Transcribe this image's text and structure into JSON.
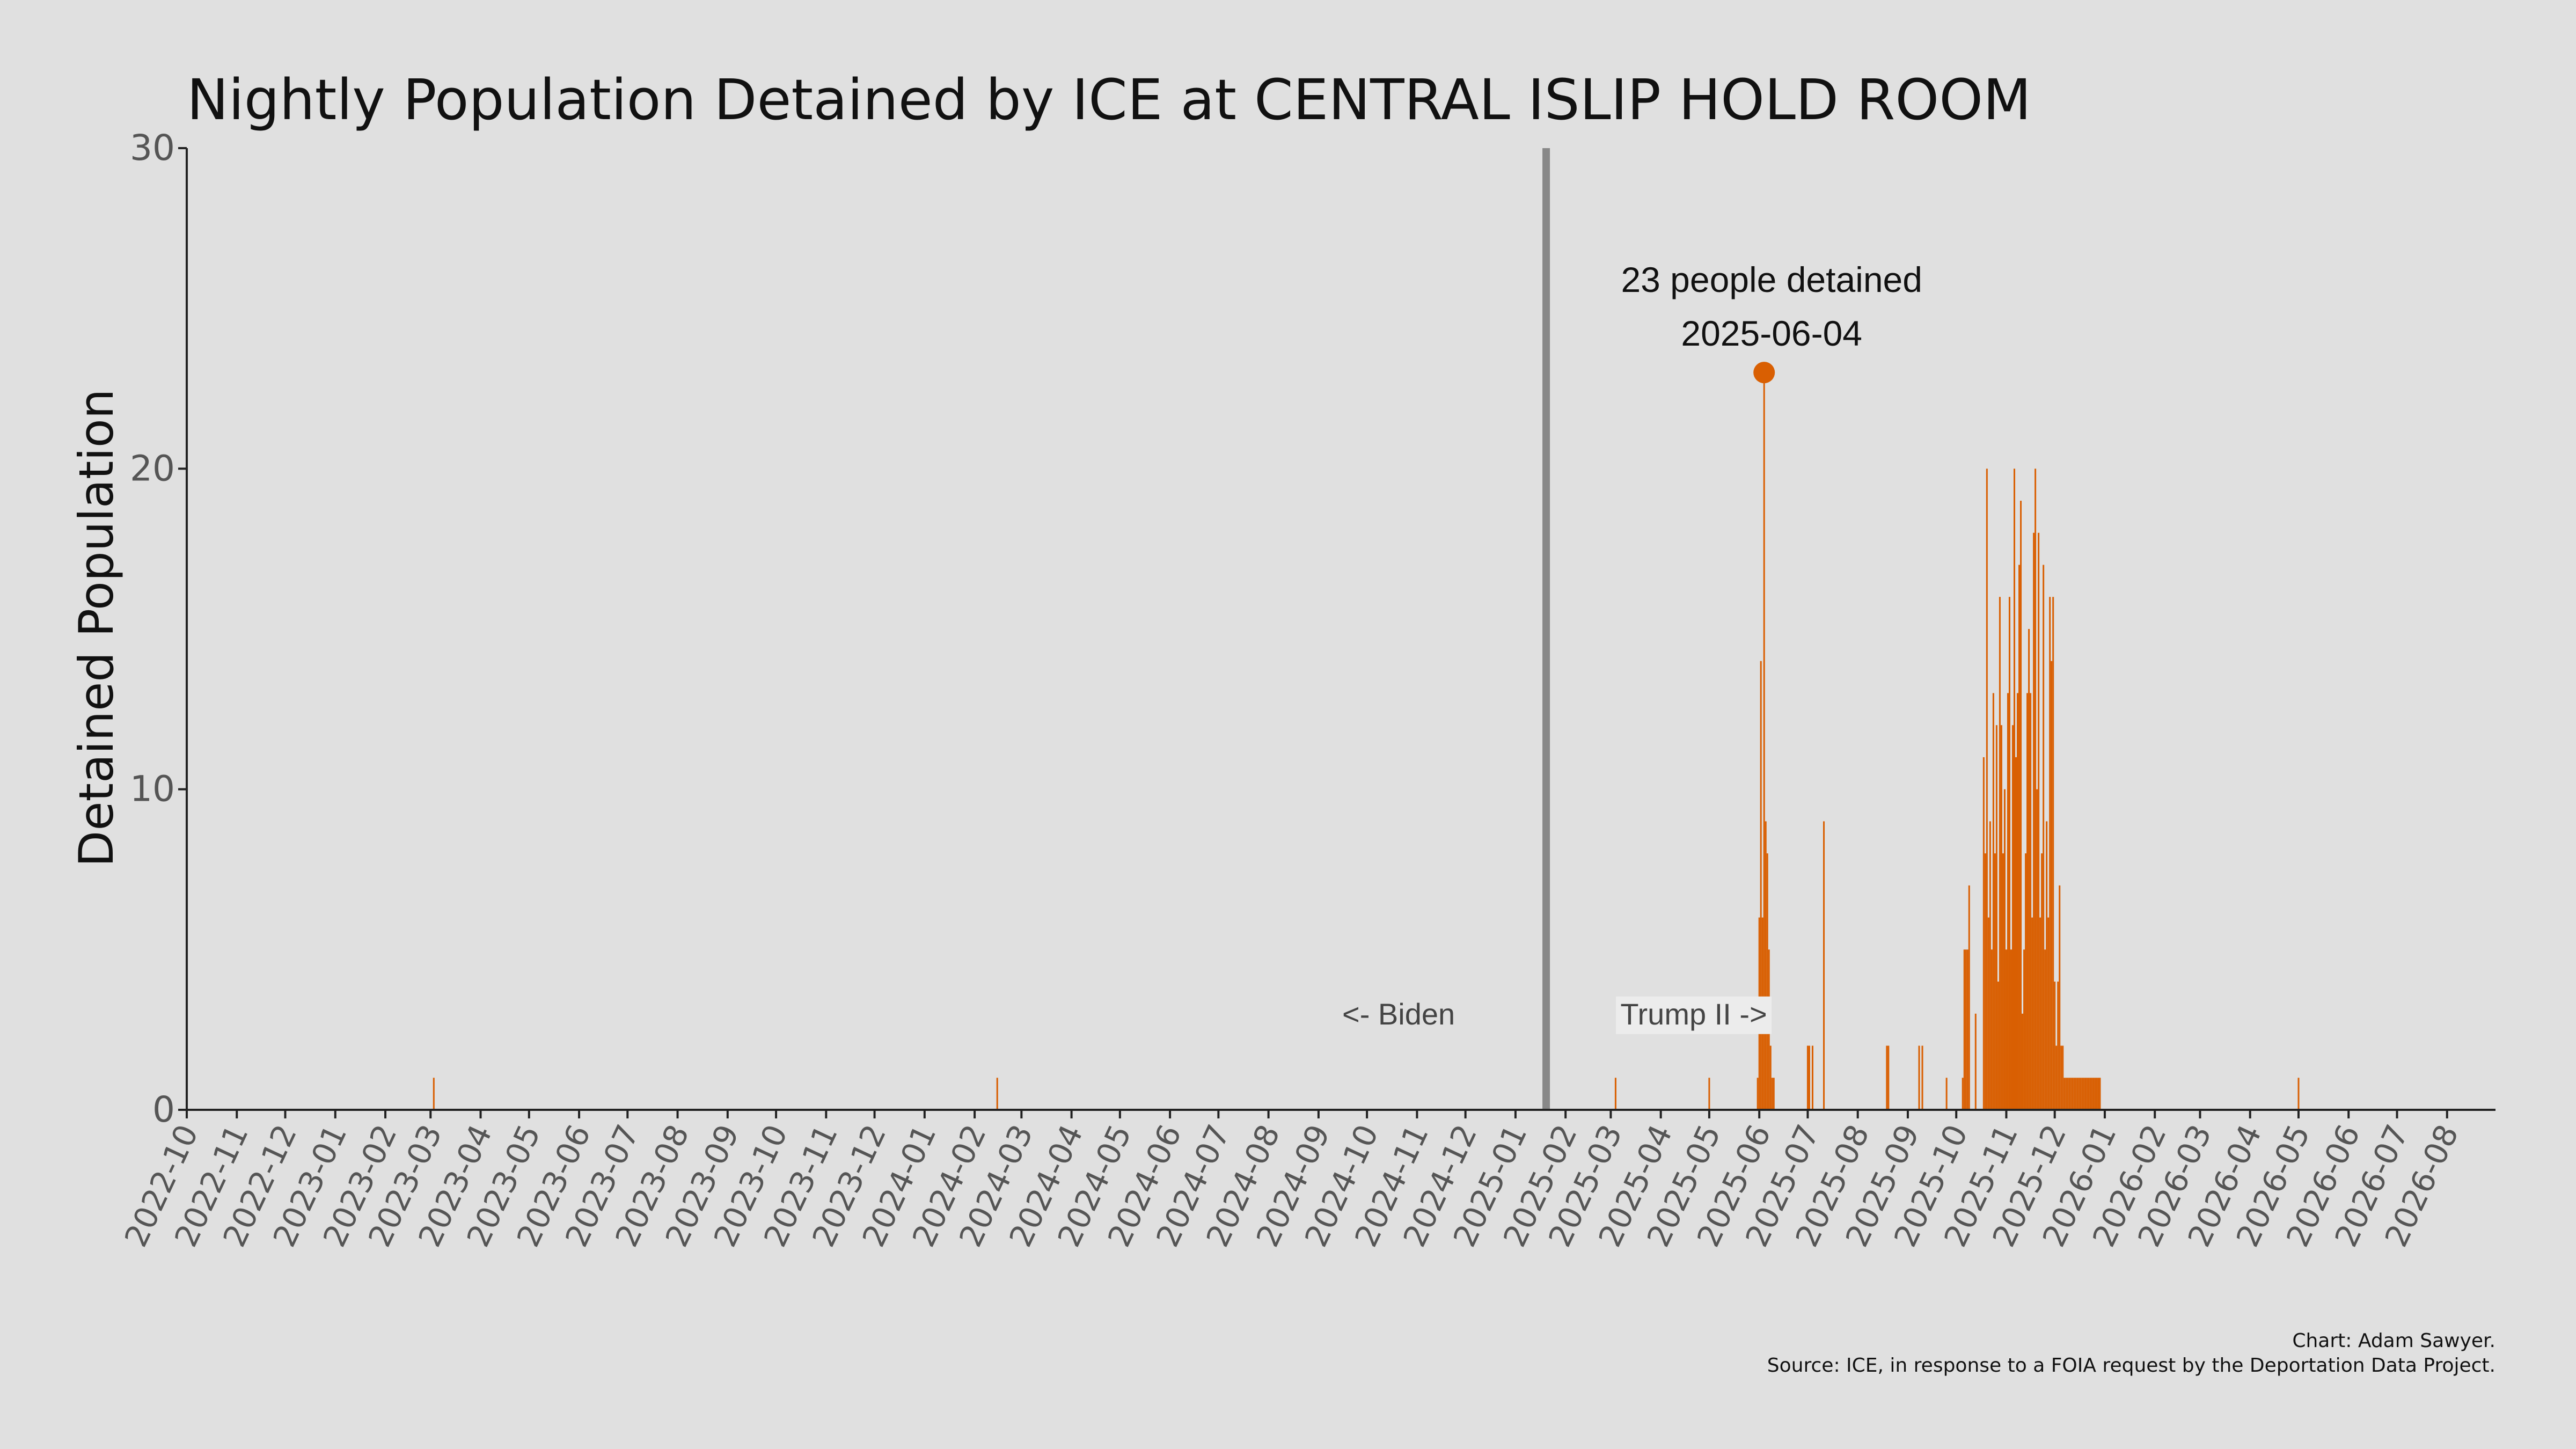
{
  "chart_data": {
    "type": "bar",
    "title": "Nightly Population Detained by ICE at CENTRAL ISLIP HOLD ROOM",
    "xlabel": "",
    "ylabel": "Detained Population",
    "ylim": [
      0,
      30
    ],
    "yticks": [
      0,
      10,
      20,
      30
    ],
    "xlim": [
      "2022-10-01",
      "2026-08-31"
    ],
    "x_tick_labels": [
      "2022-10",
      "2022-11",
      "2022-12",
      "2023-01",
      "2023-02",
      "2023-03",
      "2023-04",
      "2023-05",
      "2023-06",
      "2023-07",
      "2023-08",
      "2023-09",
      "2023-10",
      "2023-11",
      "2023-12",
      "2024-01",
      "2024-02",
      "2024-03",
      "2024-04",
      "2024-05",
      "2024-06",
      "2024-07",
      "2024-08",
      "2024-09",
      "2024-10",
      "2024-11",
      "2024-12",
      "2025-01",
      "2025-02",
      "2025-03",
      "2025-04",
      "2025-05",
      "2025-06",
      "2025-07",
      "2025-08",
      "2025-09",
      "2025-10",
      "2025-11",
      "2025-12",
      "2026-01",
      "2026-02",
      "2026-03",
      "2026-04",
      "2026-05",
      "2026-06",
      "2026-07",
      "2026-08"
    ],
    "grid": false,
    "bar_color": "#d95f02",
    "divider_color": "#888888",
    "divider_date": "2025-01-20",
    "era_labels": {
      "left": "<- Biden",
      "right": "Trump II ->"
    },
    "peak": {
      "date": "2025-06-04",
      "value": 23,
      "label_line1": "23 people detained",
      "label_line2": "2025-06-04"
    },
    "series": [
      {
        "dates": [
          "2023-03-03",
          "2024-02-15",
          "2025-03-04",
          "2025-05-01",
          "2025-05-31",
          "2025-06-01",
          "2025-06-02",
          "2025-06-03",
          "2025-06-04",
          "2025-06-05",
          "2025-06-06",
          "2025-06-07",
          "2025-06-08",
          "2025-06-09",
          "2025-06-10",
          "2025-07-01",
          "2025-07-02",
          "2025-07-04",
          "2025-07-11",
          "2025-08-19",
          "2025-08-20",
          "2025-09-08",
          "2025-09-10",
          "2025-09-25",
          "2025-10-05",
          "2025-10-06",
          "2025-10-07",
          "2025-10-08",
          "2025-10-09",
          "2025-10-13",
          "2025-10-18",
          "2025-10-19",
          "2025-10-20",
          "2025-10-21",
          "2025-10-22",
          "2025-10-23",
          "2025-10-24",
          "2025-10-25",
          "2025-10-26",
          "2025-10-27",
          "2025-10-28",
          "2025-10-29",
          "2025-10-30",
          "2025-10-31",
          "2025-11-01",
          "2025-11-02",
          "2025-11-03",
          "2025-11-04",
          "2025-11-05",
          "2025-11-06",
          "2025-11-07",
          "2025-11-08",
          "2025-11-09",
          "2025-11-10",
          "2025-11-11",
          "2025-11-12",
          "2025-11-13",
          "2025-11-14",
          "2025-11-15",
          "2025-11-16",
          "2025-11-17",
          "2025-11-18",
          "2025-11-19",
          "2025-11-20",
          "2025-11-21",
          "2025-11-22",
          "2025-11-23",
          "2025-11-24",
          "2025-11-25",
          "2025-11-26",
          "2025-11-27",
          "2025-11-28",
          "2025-11-29",
          "2025-11-30",
          "2025-12-01",
          "2025-12-02",
          "2025-12-03",
          "2025-12-04",
          "2025-12-05",
          "2025-12-06",
          "2025-12-07",
          "2025-12-08",
          "2025-12-09",
          "2025-12-10",
          "2025-12-11",
          "2025-12-12",
          "2025-12-13",
          "2025-12-14",
          "2025-12-15",
          "2025-12-16",
          "2025-12-17",
          "2025-12-18",
          "2025-12-19",
          "2025-12-20",
          "2025-12-21",
          "2025-12-22",
          "2025-12-23",
          "2025-12-24",
          "2025-12-25",
          "2025-12-26",
          "2025-12-27",
          "2025-12-28",
          "2025-12-29",
          "2026-05-01"
        ],
        "values": [
          1,
          1,
          1,
          1,
          1,
          6,
          14,
          6,
          23,
          9,
          8,
          5,
          2,
          1,
          1,
          2,
          2,
          2,
          9,
          2,
          2,
          2,
          2,
          1,
          1,
          5,
          5,
          5,
          7,
          3,
          11,
          8,
          20,
          6,
          9,
          5,
          13,
          8,
          12,
          4,
          16,
          12,
          8,
          10,
          5,
          13,
          16,
          5,
          12,
          20,
          11,
          13,
          17,
          19,
          3,
          5,
          8,
          13,
          15,
          13,
          6,
          18,
          20,
          10,
          18,
          6,
          8,
          17,
          5,
          9,
          6,
          16,
          14,
          16,
          4,
          2,
          4,
          7,
          2,
          2,
          1,
          1,
          1,
          1,
          1,
          1,
          1,
          1,
          1,
          1,
          1,
          1,
          1,
          1,
          1,
          1,
          1,
          1,
          1,
          1,
          1,
          1,
          1,
          1
        ]
      }
    ],
    "credit": "Chart: Adam Sawyer.",
    "source": "Source: ICE, in response to a FOIA request by the Deportation Data Project."
  }
}
